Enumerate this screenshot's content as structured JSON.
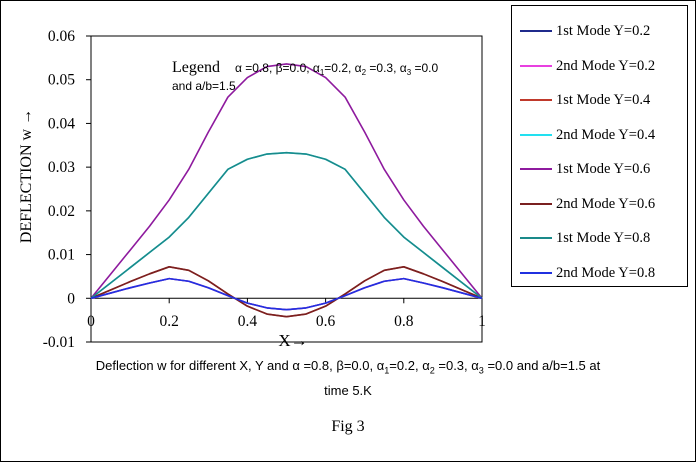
{
  "chart_data": {
    "type": "line",
    "xlabel": "X→",
    "ylabel": "DEFLECTION w →",
    "xlim": [
      0,
      1
    ],
    "ylim": [
      -0.01,
      0.06
    ],
    "x_ticks": [
      "0",
      "0.2",
      "0.4",
      "0.6",
      "0.8",
      "1"
    ],
    "y_ticks": [
      "-0.01",
      "0",
      "0.01",
      "0.02",
      "0.03",
      "0.04",
      "0.05",
      "0.06"
    ],
    "grid": false,
    "legend_position": "right",
    "annotation": {
      "title": "Legend",
      "params": [
        {
          "name": "α",
          "sub": "",
          "value": " =0.8, "
        },
        {
          "name": "β",
          "sub": "",
          "value": "=0.0, "
        },
        {
          "name": "α",
          "sub": "1",
          "value": "=0.2, "
        },
        {
          "name": "α",
          "sub": "2",
          "value": " =0.3, "
        },
        {
          "name": "α",
          "sub": "3",
          "value": " =0.0"
        }
      ],
      "line2": "and a/b=1.5"
    },
    "x": [
      0,
      0.05,
      0.1,
      0.15,
      0.2,
      0.25,
      0.3,
      0.35,
      0.4,
      0.45,
      0.5,
      0.55,
      0.6,
      0.65,
      0.7,
      0.75,
      0.8,
      0.85,
      0.9,
      0.95,
      1.0
    ],
    "series": [
      {
        "name": "1st Mode Y=0.2",
        "color": "#1f2a8c",
        "values": [
          0,
          0.0012,
          0.0024,
          0.0035,
          0.0045,
          0.0039,
          0.0024,
          0.0006,
          -0.0011,
          -0.0022,
          -0.0026,
          -0.0022,
          -0.0011,
          0.0006,
          0.0024,
          0.0039,
          0.0045,
          0.0035,
          0.0024,
          0.0012,
          0
        ]
      },
      {
        "name": "2nd Mode Y=0.2",
        "color": "#e840e0",
        "values": [
          0,
          0.0012,
          0.0024,
          0.0035,
          0.0045,
          0.0039,
          0.0024,
          0.0006,
          -0.0011,
          -0.0022,
          -0.0026,
          -0.0022,
          -0.0011,
          0.0006,
          0.0024,
          0.0039,
          0.0045,
          0.0035,
          0.0024,
          0.0012,
          0
        ]
      },
      {
        "name": "1st Mode Y=0.4",
        "color": "#c0392b",
        "values": [
          0,
          0.0019,
          0.0038,
          0.0056,
          0.0072,
          0.0064,
          0.004,
          0.001,
          -0.0018,
          -0.0036,
          -0.0042,
          -0.0036,
          -0.0018,
          0.001,
          0.004,
          0.0064,
          0.0072,
          0.0056,
          0.0038,
          0.0019,
          0
        ]
      },
      {
        "name": "2nd Mode Y=0.4",
        "color": "#22e0f0",
        "values": [
          0,
          0.0035,
          0.007,
          0.0105,
          0.014,
          0.0185,
          0.024,
          0.0295,
          0.0318,
          0.033,
          0.0333,
          0.033,
          0.0318,
          0.0295,
          0.024,
          0.0185,
          0.014,
          0.0105,
          0.007,
          0.0035,
          0
        ]
      },
      {
        "name": "1st Mode Y=0.6",
        "color": "#8e1a9e",
        "values": [
          0,
          0.0055,
          0.011,
          0.0165,
          0.0225,
          0.0295,
          0.038,
          0.046,
          0.0505,
          0.053,
          0.0536,
          0.053,
          0.0505,
          0.046,
          0.038,
          0.0295,
          0.0225,
          0.0165,
          0.011,
          0.0055,
          0
        ]
      },
      {
        "name": "2nd Mode Y=0.6",
        "color": "#7a2020",
        "values": [
          0,
          0.0019,
          0.0038,
          0.0056,
          0.0072,
          0.0064,
          0.004,
          0.001,
          -0.0018,
          -0.0036,
          -0.0042,
          -0.0036,
          -0.0018,
          0.001,
          0.004,
          0.0064,
          0.0072,
          0.0056,
          0.0038,
          0.0019,
          0
        ]
      },
      {
        "name": "1st Mode Y=0.8",
        "color": "#1a8a8a",
        "values": [
          0,
          0.0035,
          0.007,
          0.0105,
          0.014,
          0.0185,
          0.024,
          0.0295,
          0.0318,
          0.033,
          0.0333,
          0.033,
          0.0318,
          0.0295,
          0.024,
          0.0185,
          0.014,
          0.0105,
          0.007,
          0.0035,
          0
        ]
      },
      {
        "name": "2nd Mode Y=0.8",
        "color": "#2030e0",
        "values": [
          0,
          0.0012,
          0.0024,
          0.0035,
          0.0045,
          0.0039,
          0.0024,
          0.0006,
          -0.0011,
          -0.0022,
          -0.0026,
          -0.0022,
          -0.0011,
          0.0006,
          0.0024,
          0.0039,
          0.0045,
          0.0035,
          0.0024,
          0.0012,
          0
        ]
      }
    ]
  },
  "caption": {
    "text_part1": "Deflection w for different X, Y and ",
    "params": [
      {
        "name": "α",
        "sub": "",
        "value": " =0.8, "
      },
      {
        "name": "β",
        "sub": "",
        "value": "=0.0, "
      },
      {
        "name": "α",
        "sub": "1",
        "value": "=0.2, "
      },
      {
        "name": "α",
        "sub": "2",
        "value": " =0.3, "
      },
      {
        "name": "α",
        "sub": "3",
        "value": " =0.0 "
      }
    ],
    "text_part2": "and a/b=1.5 at",
    "line2": "time 5.K"
  },
  "figure_label": "Fig 3"
}
